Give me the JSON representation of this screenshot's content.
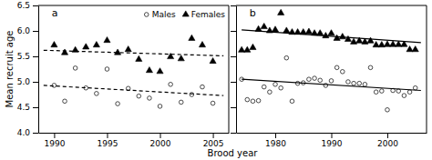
{
  "chart_data": [
    {
      "type": "scatter",
      "title": "a",
      "x_label": "Brood year",
      "y_label": "Mean recruit age",
      "xlim": [
        1988.5,
        2006.5
      ],
      "xticks": [
        1990,
        1995,
        2000,
        2005
      ],
      "ylim": [
        4.0,
        6.5
      ],
      "yticks": [
        {
          "value": 4.0,
          "label": "4.0"
        },
        4.5,
        {
          "value": 5.0,
          "label": "5.0"
        },
        5.5,
        {
          "value": 6.0,
          "label": "6.0"
        },
        6.5
      ],
      "legend": "upper right",
      "series": [
        {
          "name": "Males",
          "type": "scatter",
          "marker": "open-circle",
          "color": "black",
          "x": [
            1990,
            1991,
            1992,
            1993,
            1994,
            1995,
            1996,
            1997,
            1998,
            1999,
            2000,
            2001,
            2002,
            2003,
            2004,
            2005
          ],
          "values": [
            4.93,
            4.62,
            5.27,
            4.88,
            4.77,
            5.25,
            4.57,
            4.87,
            4.72,
            4.68,
            4.52,
            4.95,
            4.6,
            4.75,
            4.9,
            4.58
          ]
        },
        {
          "name": "Females",
          "type": "scatter",
          "marker": "triangle",
          "color": "black",
          "x": [
            1990,
            1991,
            1992,
            1993,
            1994,
            1995,
            1996,
            1997,
            1998,
            1999,
            2000,
            2001,
            2002,
            2003,
            2004,
            2005
          ],
          "values": [
            5.72,
            5.57,
            5.62,
            5.68,
            5.72,
            5.81,
            5.57,
            5.63,
            5.44,
            5.22,
            5.2,
            5.49,
            5.45,
            5.85,
            5.72,
            5.4
          ]
        },
        {
          "type": "line",
          "line_style": "dashed",
          "color": "black",
          "x": [
            1989,
            2006
          ],
          "values": [
            4.93,
            4.73
          ]
        },
        {
          "type": "line",
          "line_style": "dashed",
          "color": "black",
          "x": [
            1989,
            2006
          ],
          "values": [
            5.62,
            5.51
          ]
        }
      ]
    },
    {
      "type": "scatter",
      "title": "b",
      "xlim": [
        1973,
        2007
      ],
      "xticks": [
        1980,
        1990,
        2000
      ],
      "ylim": [
        4.0,
        6.5
      ],
      "yticks": [
        4,
        4.5,
        5,
        5.5,
        6,
        6.5
      ],
      "tick_labels": "x",
      "series": [
        {
          "type": "scatter",
          "marker": "open-circle",
          "color": "black",
          "x": [
            1974,
            1975,
            1976,
            1977,
            1978,
            1979,
            1980,
            1981,
            1982,
            1983,
            1984,
            1985,
            1986,
            1987,
            1988,
            1989,
            1990,
            1991,
            1992,
            1993,
            1994,
            1995,
            1996,
            1997,
            1998,
            1999,
            2000,
            2001,
            2002,
            2003,
            2004,
            2005
          ],
          "values": [
            5.05,
            4.65,
            4.62,
            4.63,
            4.9,
            4.8,
            4.95,
            4.88,
            5.47,
            4.62,
            4.97,
            4.98,
            5.05,
            5.07,
            5.03,
            4.93,
            5.02,
            5.28,
            5.2,
            5.0,
            4.97,
            4.97,
            4.95,
            5.28,
            4.8,
            4.82,
            4.45,
            4.83,
            4.82,
            4.73,
            4.8,
            4.88
          ]
        },
        {
          "type": "scatter",
          "marker": "triangle",
          "color": "black",
          "x": [
            1974,
            1975,
            1976,
            1977,
            1978,
            1979,
            1980,
            1981,
            1982,
            1983,
            1984,
            1985,
            1986,
            1987,
            1988,
            1989,
            1990,
            1991,
            1992,
            1993,
            1994,
            1995,
            1996,
            1997,
            1998,
            1999,
            2000,
            2001,
            2002,
            2003,
            2004,
            2005
          ],
          "values": [
            5.62,
            5.62,
            5.67,
            6.03,
            6.08,
            6.0,
            6.02,
            6.35,
            6.0,
            5.97,
            5.97,
            5.97,
            5.98,
            5.95,
            5.95,
            5.9,
            5.95,
            5.85,
            5.88,
            5.83,
            5.78,
            5.8,
            5.78,
            5.8,
            5.72,
            5.72,
            5.73,
            5.73,
            5.73,
            5.73,
            5.63,
            5.63
          ]
        },
        {
          "type": "line",
          "line_style": "solid",
          "color": "black",
          "x": [
            1974,
            2006
          ],
          "values": [
            5.05,
            4.83
          ]
        },
        {
          "type": "line",
          "line_style": "solid",
          "color": "black",
          "x": [
            1974,
            2006
          ],
          "values": [
            6.02,
            5.77
          ]
        }
      ]
    }
  ]
}
